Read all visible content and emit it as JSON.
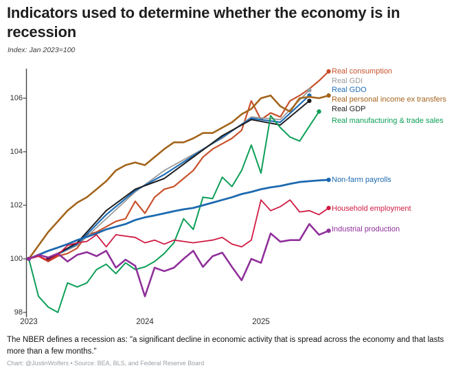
{
  "header": {
    "title": "Indicators used to determine whether the economy is in recession",
    "subtitle": "Index: Jan 2023=100"
  },
  "footer": {
    "note": "The NBER defines a recession as: \"a significant decline in economic activity that is spread across the economy and that lasts more than a few months.\"",
    "credit": "Chart: @JustinWolfers • Source: BEA, BLS, and Federal Reserve Board"
  },
  "chart_data": {
    "type": "line",
    "title": "Indicators used to determine whether the economy is in recession",
    "index_note": "Index: Jan 2023=100",
    "x_axis": {
      "ticks": [
        "2023",
        "2024",
        "2025"
      ],
      "range_years": [
        2023.0,
        2025.83
      ],
      "start_month": "Jan 2023",
      "unit": "months"
    },
    "y_axis": {
      "ticks": [
        "98",
        "100",
        "102",
        "104",
        "106"
      ],
      "tick_values": [
        98,
        100,
        102,
        104,
        106
      ],
      "range": [
        98,
        107.2
      ],
      "grid": false
    },
    "legend_position": "right-of-line-ends",
    "axis_color": "#444444",
    "series": [
      {
        "id": "real-consumption",
        "label": "Real consumption",
        "color": "#c8512b",
        "line_width": 2.2,
        "cadence": "monthly",
        "first_month_index": 0,
        "month_step": 1,
        "label_dy": 0,
        "values": [
          100,
          100.1,
          99.9,
          100.1,
          100.2,
          100.4,
          100.9,
          101.0,
          101.2,
          101.4,
          101.5,
          102.15,
          101.7,
          102.3,
          102.6,
          102.7,
          103.0,
          103.3,
          103.8,
          104.1,
          104.3,
          104.5,
          104.8,
          105.9,
          105.2,
          105.45,
          105.3,
          105.9,
          106.1,
          106.35,
          106.65,
          107.0
        ]
      },
      {
        "id": "real-gdi",
        "label": "Real GDI",
        "color": "#9a9a9a",
        "line_width": 1.8,
        "cadence": "quarterly",
        "first_month_index": 2,
        "month_step": 3,
        "label_dy": -13,
        "values": [
          100,
          100.5,
          101.5,
          102.5,
          103.3,
          103.9,
          104.5,
          105.3,
          105.2,
          106.3
        ]
      },
      {
        "id": "real-gdo",
        "label": "Real GDO",
        "color": "#1f6db6",
        "line_width": 2.2,
        "cadence": "quarterly",
        "first_month_index": 2,
        "month_step": 3,
        "label_dy": -8,
        "values": [
          100,
          100.55,
          101.65,
          102.55,
          103.15,
          103.85,
          104.55,
          105.25,
          105.1,
          106.1
        ]
      },
      {
        "id": "real-personal-income-ex-transfers",
        "label": "Real personal income ex transfers",
        "color": "#a3641b",
        "line_width": 2.6,
        "cadence": "monthly",
        "first_month_index": 0,
        "month_step": 1,
        "label_dy": 6,
        "values": [
          100,
          100.5,
          101.0,
          101.4,
          101.8,
          102.1,
          102.3,
          102.6,
          102.9,
          103.3,
          103.5,
          103.6,
          103.5,
          103.8,
          104.1,
          104.35,
          104.35,
          104.5,
          104.7,
          104.7,
          104.9,
          105.1,
          105.4,
          105.6,
          106.0,
          106.1,
          105.7,
          105.5,
          106.0,
          106.05,
          106.0,
          106.1
        ]
      },
      {
        "id": "real-gdp",
        "label": "Real GDP",
        "color": "#1d1d20",
        "line_width": 2.0,
        "cadence": "quarterly",
        "first_month_index": 2,
        "month_step": 3,
        "label_dy": 12,
        "values": [
          100,
          100.6,
          101.8,
          102.6,
          103.0,
          103.8,
          104.6,
          105.2,
          105.0,
          105.9
        ]
      },
      {
        "id": "real-manufacturing-trade-sales",
        "label": "Real manufacturing & trade sales",
        "color": "#0c9e57",
        "line_width": 2.0,
        "cadence": "monthly",
        "first_month_index": 0,
        "month_step": 1,
        "label_dy": 13,
        "values": [
          100,
          98.6,
          98.2,
          98.0,
          99.1,
          98.95,
          99.1,
          99.6,
          99.8,
          99.45,
          99.85,
          99.6,
          99.7,
          99.9,
          100.2,
          100.6,
          101.5,
          101.1,
          102.3,
          102.25,
          103.05,
          102.7,
          103.3,
          104.25,
          103.2,
          105.35,
          104.9,
          104.55,
          104.4,
          104.95,
          105.5
        ]
      },
      {
        "id": "non-farm-payrolls",
        "label": "Non-farm payrolls",
        "color": "#1c69b0",
        "line_width": 2.8,
        "cadence": "monthly",
        "first_month_index": 0,
        "month_step": 1,
        "label_dy": 0,
        "values": [
          100,
          100.15,
          100.3,
          100.42,
          100.55,
          100.7,
          100.82,
          100.95,
          101.1,
          101.2,
          101.3,
          101.45,
          101.55,
          101.62,
          101.7,
          101.78,
          101.85,
          101.9,
          102.0,
          102.1,
          102.2,
          102.3,
          102.42,
          102.5,
          102.6,
          102.67,
          102.72,
          102.8,
          102.87,
          102.9,
          102.93,
          102.95
        ]
      },
      {
        "id": "household-employment",
        "label": "Household employment",
        "color": "#d01942",
        "line_width": 1.8,
        "cadence": "monthly",
        "first_month_index": 0,
        "month_step": 1,
        "label_dy": 1,
        "values": [
          100,
          100.1,
          99.95,
          100.15,
          100.5,
          100.6,
          100.65,
          100.9,
          100.45,
          100.9,
          100.85,
          100.8,
          100.6,
          100.7,
          100.55,
          100.7,
          100.65,
          100.6,
          100.65,
          100.7,
          100.8,
          100.55,
          100.45,
          100.7,
          102.2,
          101.8,
          101.95,
          102.2,
          101.75,
          101.8,
          101.65,
          101.9
        ]
      },
      {
        "id": "industrial-production",
        "label": "Industrial production",
        "color": "#8f2f9a",
        "line_width": 2.6,
        "cadence": "monthly",
        "first_month_index": 0,
        "month_step": 1,
        "label_dy": -2,
        "values": [
          100,
          100.15,
          100.05,
          100.2,
          99.9,
          100.15,
          100.25,
          100.1,
          100.3,
          99.67,
          99.97,
          99.74,
          98.6,
          99.67,
          99.54,
          99.67,
          100.0,
          100.3,
          99.7,
          100.1,
          100.23,
          99.7,
          99.2,
          100.0,
          99.85,
          100.95,
          100.64,
          100.7,
          100.7,
          101.3,
          100.9,
          101.05
        ]
      }
    ]
  }
}
